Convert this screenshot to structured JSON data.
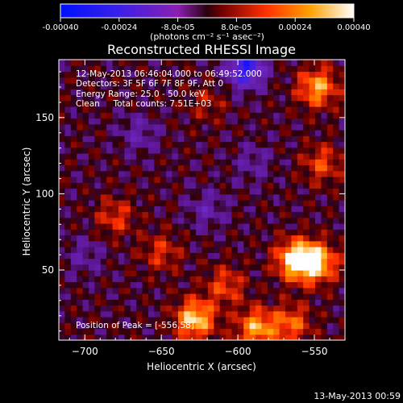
{
  "chart_data": {
    "type": "heatmap",
    "title": "Reconstructed RHESSI Image",
    "xlabel": "Heliocentric X (arcsec)",
    "ylabel": "Heliocentric Y (arcsec)",
    "xlim": [
      -717,
      -530
    ],
    "ylim": [
      4,
      188
    ],
    "xticks": [
      -700,
      -650,
      -600,
      -550
    ],
    "yticks": [
      50,
      100,
      150
    ],
    "colorbar": {
      "range": [
        -0.0004,
        0.0004
      ],
      "tick_values": [
        -0.0004,
        -0.00024,
        -8e-05,
        8e-05,
        0.00024,
        0.0004
      ],
      "tick_labels": [
        "-0.00040",
        "-0.00024",
        "-8.0e-05",
        "8.0e-05",
        "0.00024",
        "0.00040"
      ],
      "units": "(photons cm⁻² s⁻¹ asec⁻²)"
    },
    "annotations": [
      "12-May-2013 06:46:04.000 to 06:49:52.000",
      "Detectors: 3F 5F 6F 7F 8F 9F, Att 0",
      "Energy Range: 25.0 - 50.0 keV",
      "Clean     Total counts: 7.51E+03"
    ],
    "peak_label": "Position of Peak = [-556,58]",
    "peaks": [
      {
        "x": -562,
        "y": 57,
        "value": 0.0004
      },
      {
        "x": -548,
        "y": 55,
        "value": 0.00034
      },
      {
        "x": -628,
        "y": 18,
        "value": 0.00036
      },
      {
        "x": -548,
        "y": 170,
        "value": 0.0003
      },
      {
        "x": -588,
        "y": 12,
        "value": 0.0003
      },
      {
        "x": -608,
        "y": 40,
        "value": 0.00018
      },
      {
        "x": -565,
        "y": 15,
        "value": 0.00022
      },
      {
        "x": -680,
        "y": 85,
        "value": 0.00016
      },
      {
        "x": -650,
        "y": 62,
        "value": 0.00015
      },
      {
        "x": -620,
        "y": 160,
        "value": 0.0001
      },
      {
        "x": -545,
        "y": 120,
        "value": 0.00018
      }
    ],
    "troughs": [
      {
        "x": -595,
        "y": 182,
        "value": -0.00034
      },
      {
        "x": -620,
        "y": 90,
        "value": -0.00012
      },
      {
        "x": -665,
        "y": 140,
        "value": -0.00012
      },
      {
        "x": -700,
        "y": 60,
        "value": -0.0001
      },
      {
        "x": -590,
        "y": 120,
        "value": -0.0001
      }
    ]
  },
  "footer": {
    "timestamp": "13-May-2013 00:59"
  }
}
